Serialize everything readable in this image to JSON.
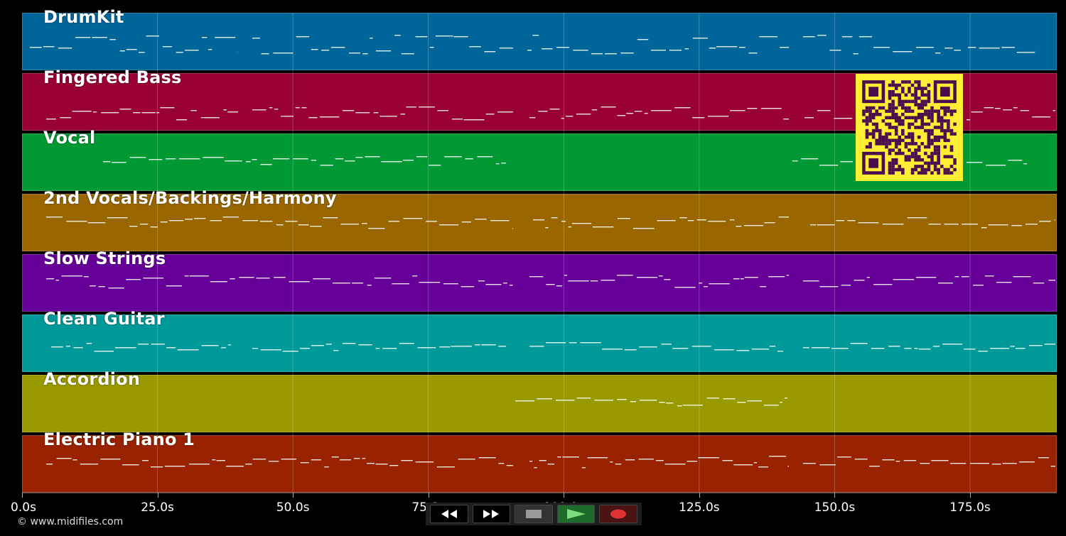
{
  "tracks": [
    {
      "name": "DrumKit",
      "color": "#006699"
    },
    {
      "name": "Fingered Bass",
      "color": "#990033"
    },
    {
      "name": "Vocal",
      "color": "#009933"
    },
    {
      "name": "2nd Vocals/Backings/Harmony",
      "color": "#996600"
    },
    {
      "name": "Slow Strings",
      "color": "#660099"
    },
    {
      "name": "Clean Guitar",
      "color": "#009999"
    },
    {
      "name": "Accordion",
      "color": "#999900"
    },
    {
      "name": "Electric Piano 1",
      "color": "#992200"
    }
  ],
  "timeline": {
    "tick_labels": [
      "0.0s",
      "25.0s",
      "50.0s",
      "75.0s",
      "100.0s",
      "125.0s",
      "150.0s",
      "175.0s"
    ],
    "tick_values": [
      0,
      25,
      50,
      75,
      100,
      125,
      150,
      175
    ],
    "max_seconds": 191
  },
  "footer": {
    "copyright": "© www.midifiles.com"
  },
  "transport": {
    "rewind_icon": "rewind-icon",
    "fast_forward_icon": "fast-forward-icon",
    "stop_icon": "stop-icon",
    "play_icon": "play-icon",
    "record_icon": "record-icon"
  },
  "qr_code": {
    "color": "#ffee33",
    "dark": "#4a0d4f"
  }
}
